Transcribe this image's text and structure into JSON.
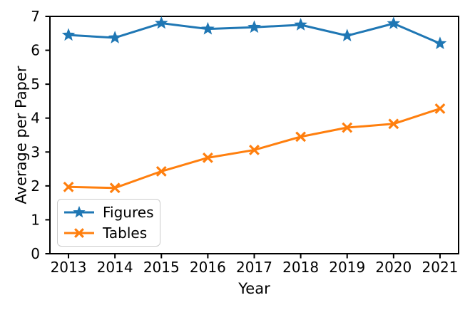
{
  "chart_data": {
    "type": "line",
    "xlabel": "Year",
    "ylabel": "Average per Paper",
    "x": [
      2013,
      2014,
      2015,
      2016,
      2017,
      2018,
      2019,
      2020,
      2021
    ],
    "xlim": [
      2012.6,
      2021.4
    ],
    "ylim": [
      0,
      7
    ],
    "yticks": [
      0,
      1,
      2,
      3,
      4,
      5,
      6,
      7
    ],
    "grid": false,
    "legend_position": "lower left",
    "axis_color": "#000000",
    "series": [
      {
        "name": "Figures",
        "color": "#1f77b4",
        "marker": "star",
        "values": [
          6.45,
          6.37,
          6.8,
          6.63,
          6.68,
          6.75,
          6.43,
          6.79,
          6.2
        ]
      },
      {
        "name": "Tables",
        "color": "#ff7f0e",
        "marker": "x",
        "values": [
          1.97,
          1.94,
          2.43,
          2.83,
          3.06,
          3.45,
          3.72,
          3.83,
          4.28
        ]
      }
    ]
  }
}
